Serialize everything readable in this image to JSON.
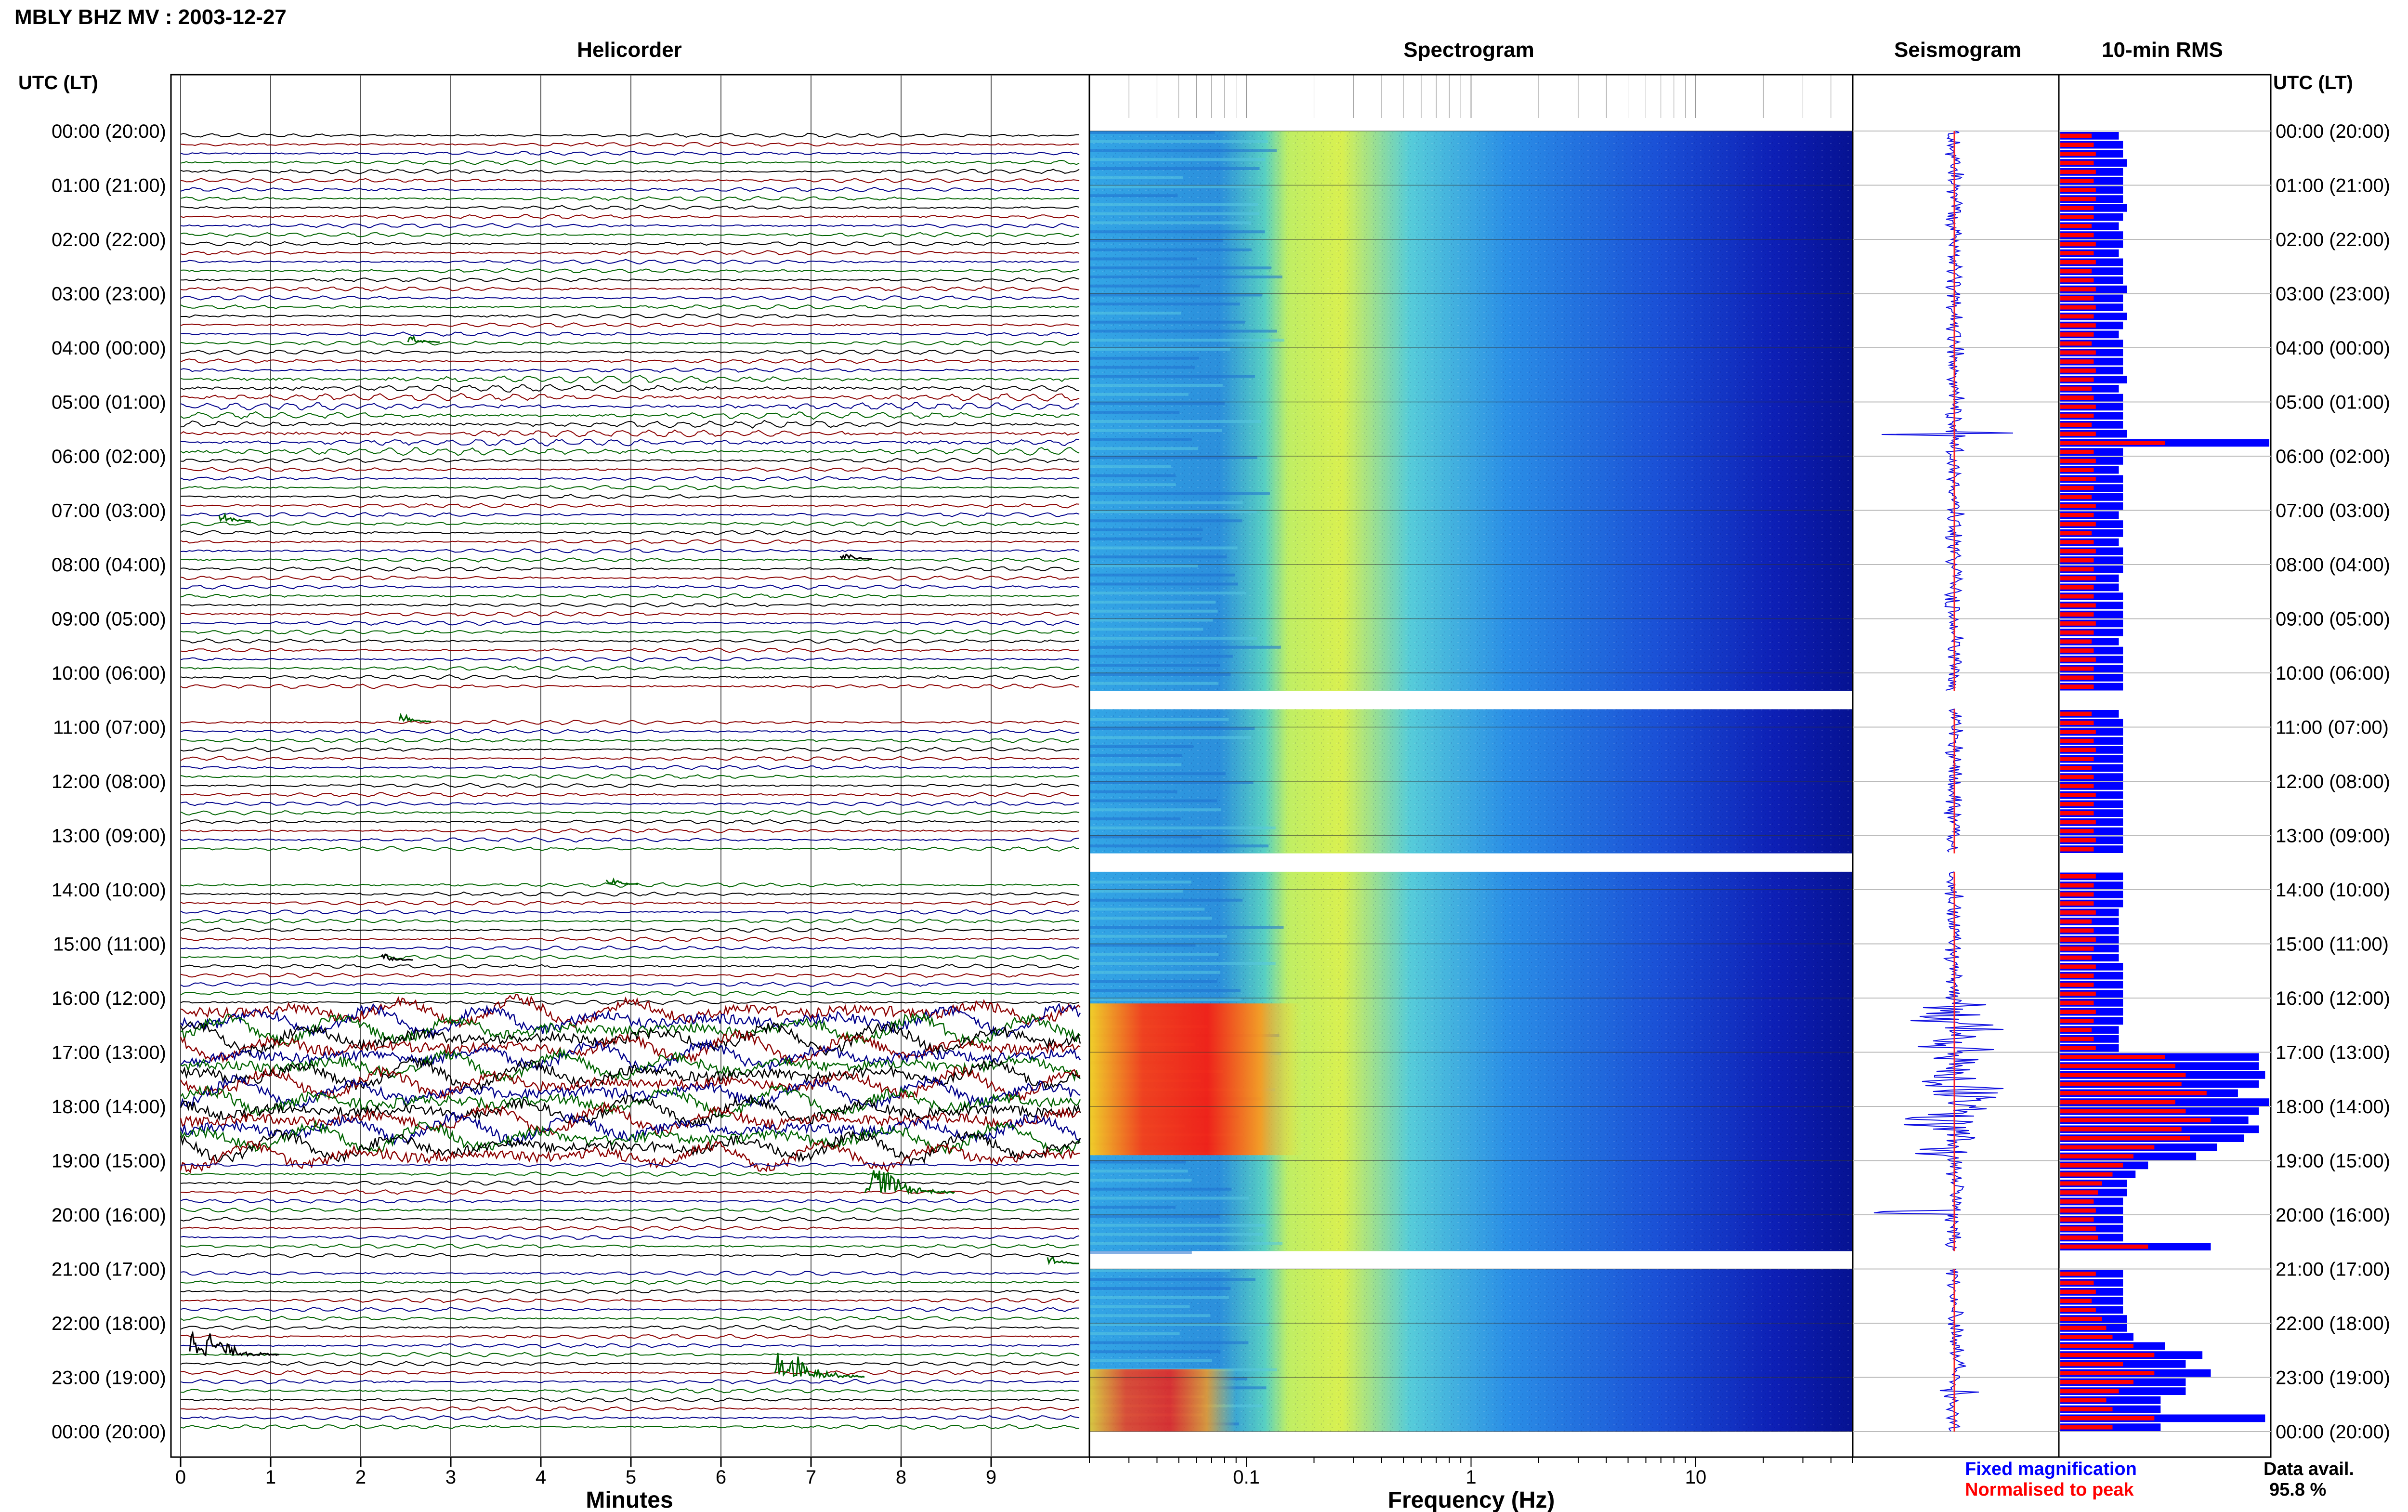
{
  "title": "MBLY BHZ MV : 2003-12-27",
  "panels": {
    "helicorder": "Helicorder",
    "spectrogram": "Spectrogram",
    "seismogram": "Seismogram",
    "rms": "10-min RMS"
  },
  "time_axis_header": "UTC (LT)",
  "hour_labels": [
    "00:00 (20:00)",
    "01:00 (21:00)",
    "02:00 (22:00)",
    "03:00 (23:00)",
    "04:00 (00:00)",
    "05:00 (01:00)",
    "06:00 (02:00)",
    "07:00 (03:00)",
    "08:00 (04:00)",
    "09:00 (05:00)",
    "10:00 (06:00)",
    "11:00 (07:00)",
    "12:00 (08:00)",
    "13:00 (09:00)",
    "14:00 (10:00)",
    "15:00 (11:00)",
    "16:00 (12:00)",
    "17:00 (13:00)",
    "18:00 (14:00)",
    "19:00 (15:00)",
    "20:00 (16:00)",
    "21:00 (17:00)",
    "22:00 (18:00)",
    "23:00 (19:00)",
    "00:00 (20:00)"
  ],
  "helicorder_axis": {
    "xlabel": "Minutes",
    "ticks": [
      "0",
      "1",
      "2",
      "3",
      "4",
      "5",
      "6",
      "7",
      "8",
      "9"
    ]
  },
  "spectrogram_axis": {
    "xlabel": "Frequency (Hz)",
    "ticks": [
      "0.1",
      "1",
      "10"
    ]
  },
  "legend": {
    "fixed": "Fixed magnification",
    "normalised": "Normalised to peak",
    "availability_label": "Data avail.",
    "availability_value": "95.8 %"
  },
  "colors": {
    "trace_cycle": [
      "#000000",
      "#8b0000",
      "#00008b",
      "#006400"
    ],
    "fixed_bar": "#0000ff",
    "normalised_bar": "#ff0000",
    "grid": "#888888"
  },
  "chart_data": {
    "type": "heatmap",
    "title": "MBLY BHZ MV : 2003-12-27",
    "xlabel": "Frequency (Hz)",
    "ylabel": "UTC (LT)",
    "x_scale": "log",
    "xlim": [
      0.02,
      50
    ],
    "helicorder_xlim": [
      0,
      10
    ],
    "helicorder_xlabel": "Minutes",
    "time_range_hours": [
      0,
      24
    ],
    "data_gaps_hours": [
      [
        10.33,
        10.67
      ],
      [
        13.33,
        13.67
      ],
      [
        20.67,
        21.0
      ]
    ],
    "events": [
      {
        "hour": 3.9,
        "minute": 2.6
      },
      {
        "hour": 7.2,
        "minute": 0.5
      },
      {
        "hour": 7.9,
        "minute": 7.4
      },
      {
        "hour": 10.9,
        "minute": 2.5
      },
      {
        "hour": 13.9,
        "minute": 4.8
      },
      {
        "hour": 15.3,
        "minute": 2.3
      },
      {
        "hour": 19.6,
        "minute": 7.8
      },
      {
        "hour": 20.9,
        "minute": 9.7
      },
      {
        "hour": 22.6,
        "minute": 0.3
      },
      {
        "hour": 23.0,
        "minute": 6.8
      }
    ],
    "rms_10min": {
      "fixed_magnification": [
        0.28,
        0.3,
        0.3,
        0.32,
        0.3,
        0.3,
        0.3,
        0.3,
        0.32,
        0.3,
        0.28,
        0.3,
        0.3,
        0.28,
        0.3,
        0.3,
        0.3,
        0.32,
        0.3,
        0.3,
        0.32,
        0.3,
        0.28,
        0.3,
        0.3,
        0.3,
        0.3,
        0.32,
        0.28,
        0.3,
        0.3,
        0.3,
        0.3,
        0.32,
        1.0,
        0.3,
        0.3,
        0.28,
        0.3,
        0.3,
        0.3,
        0.3,
        0.28,
        0.3,
        0.3,
        0.28,
        0.3,
        0.3,
        0.3,
        0.28,
        0.28,
        0.3,
        0.3,
        0.3,
        0.3,
        0.3,
        0.28,
        0.3,
        0.3,
        0.3,
        0.3,
        0.3,
        0.3,
        0.3,
        0.28,
        0.3,
        0.3,
        0.3,
        0.3,
        0.3,
        0.3,
        0.3,
        0.3,
        0.3,
        0.3,
        0.3,
        0.3,
        0.3,
        0.3,
        0.3,
        0.3,
        0.3,
        0.3,
        0.3,
        0.3,
        0.3,
        0.28,
        0.28,
        0.28,
        0.28,
        0.28,
        0.28,
        0.3,
        0.3,
        0.3,
        0.3,
        0.3,
        0.3,
        0.3,
        0.28,
        0.28,
        0.28,
        0.95,
        0.95,
        0.98,
        0.95,
        0.85,
        1.0,
        0.95,
        0.9,
        0.95,
        0.88,
        0.75,
        0.65,
        0.42,
        0.36,
        0.32,
        0.32,
        0.3,
        0.3,
        0.3,
        0.3,
        0.3,
        0.72,
        0.3,
        0.3,
        0.3,
        0.3,
        0.3,
        0.3,
        0.3,
        0.32,
        0.32,
        0.35,
        0.5,
        0.68,
        0.6,
        0.72,
        0.6,
        0.6,
        0.48,
        0.48,
        0.98,
        0.48
      ],
      "normalised_to_peak": [
        0.15,
        0.16,
        0.17,
        0.16,
        0.17,
        0.16,
        0.17,
        0.17,
        0.16,
        0.16,
        0.15,
        0.16,
        0.17,
        0.16,
        0.17,
        0.15,
        0.16,
        0.17,
        0.16,
        0.17,
        0.16,
        0.17,
        0.16,
        0.15,
        0.17,
        0.16,
        0.17,
        0.16,
        0.15,
        0.16,
        0.17,
        0.16,
        0.15,
        0.17,
        0.5,
        0.16,
        0.17,
        0.16,
        0.17,
        0.16,
        0.15,
        0.17,
        0.16,
        0.17,
        0.15,
        0.16,
        0.17,
        0.16,
        0.16,
        0.17,
        0.16,
        0.16,
        0.17,
        0.16,
        0.17,
        0.16,
        0.15,
        0.16,
        0.17,
        0.16,
        0.16,
        0.16,
        0.17,
        0.16,
        0.15,
        0.16,
        0.17,
        0.16,
        0.17,
        0.16,
        0.15,
        0.16,
        0.16,
        0.17,
        0.16,
        0.16,
        0.17,
        0.16,
        0.17,
        0.16,
        0.15,
        0.16,
        0.17,
        0.16,
        0.16,
        0.16,
        0.17,
        0.15,
        0.16,
        0.17,
        0.16,
        0.15,
        0.17,
        0.16,
        0.16,
        0.17,
        0.16,
        0.17,
        0.16,
        0.15,
        0.16,
        0.17,
        0.5,
        0.55,
        0.6,
        0.58,
        0.7,
        0.55,
        0.6,
        0.72,
        0.58,
        0.62,
        0.45,
        0.35,
        0.3,
        0.25,
        0.2,
        0.18,
        0.16,
        0.17,
        0.16,
        0.17,
        0.18,
        0.42,
        0.17,
        0.16,
        0.17,
        0.16,
        0.17,
        0.15,
        0.17,
        0.2,
        0.22,
        0.25,
        0.35,
        0.45,
        0.3,
        0.45,
        0.35,
        0.28,
        0.22,
        0.25,
        0.45,
        0.25
      ]
    }
  }
}
